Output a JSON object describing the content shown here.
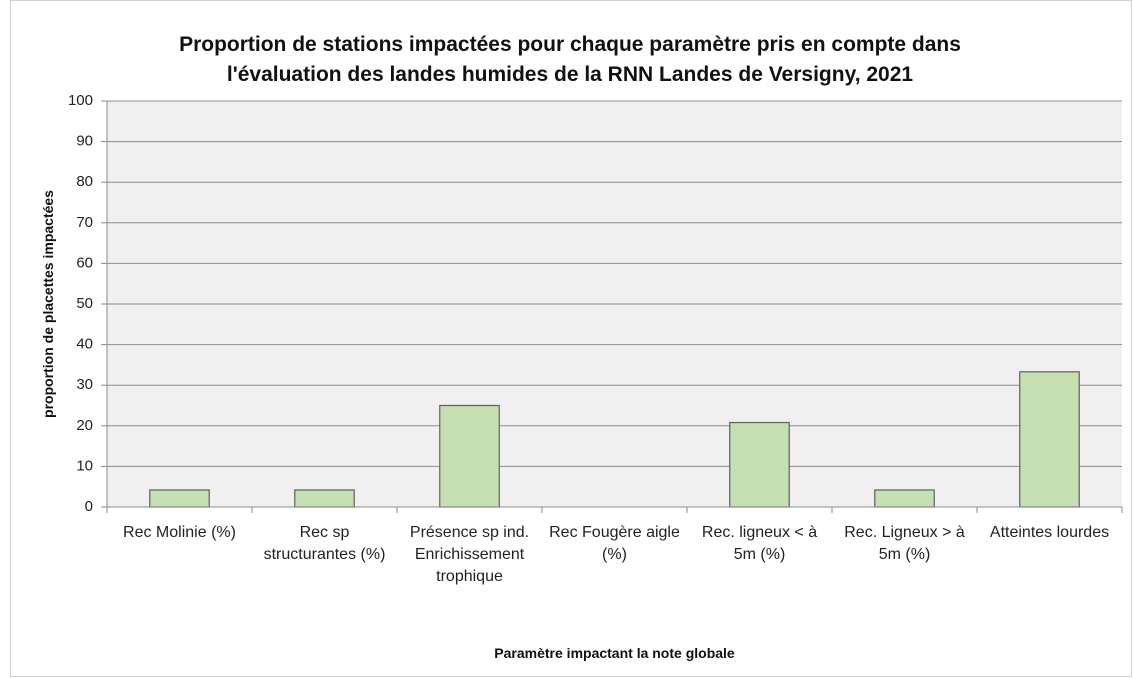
{
  "chart_data": {
    "type": "bar",
    "title": "Proportion de stations impactées pour chaque paramètre pris en compte dans l'évaluation des landes humides de la RNN Landes de Versigny, 2021",
    "x_label": "Paramètre impactant la note globale",
    "y_label": "proportion de placettes impactées",
    "categories": [
      "Rec Molinie (%)",
      "Rec sp structurantes (%)",
      "Présence sp ind. Enrichissement trophique",
      "Rec Fougère aigle (%)",
      "Rec. ligneux < à 5m (%)",
      "Rec. Ligneux > à 5m (%)",
      "Atteintes lourdes"
    ],
    "values": [
      4.2,
      4.2,
      25,
      0,
      20.8,
      4.2,
      33.3
    ],
    "color": "#c6e0b4",
    "ylim": [
      0,
      100
    ],
    "yticks": [
      0,
      10,
      20,
      30,
      40,
      50,
      60,
      70,
      80,
      90,
      100
    ],
    "grid": true
  }
}
